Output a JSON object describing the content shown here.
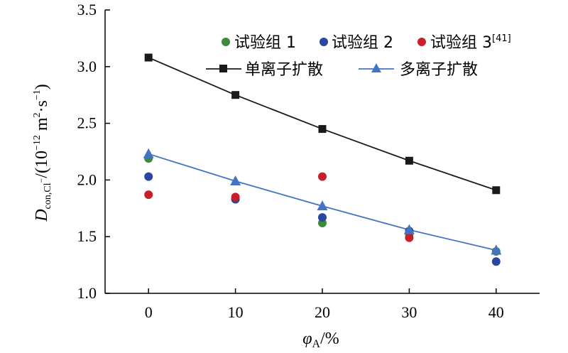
{
  "chart_data": {
    "type": "scatter",
    "x": [
      0,
      10,
      20,
      30,
      40
    ],
    "xlim": [
      -5,
      45
    ],
    "ylim": [
      1.0,
      3.5
    ],
    "xticks": [
      "0",
      "10",
      "20",
      "30",
      "40"
    ],
    "yticks": [
      "1.0",
      "1.5",
      "2.0",
      "2.5",
      "3.0",
      "3.5"
    ],
    "xlabel": "φA/%",
    "ylabel": "Dcon,Cl−/(10−12 m2·s−1)",
    "grid": false,
    "legend_position": "top",
    "series": [
      {
        "name": "试验组 1",
        "kind": "scatter",
        "color": "#3d8a3d",
        "values": [
          2.19,
          1.83,
          1.62,
          1.52,
          1.37
        ]
      },
      {
        "name": "试验组 2",
        "kind": "scatter",
        "color": "#2a46a0",
        "values": [
          2.03,
          1.83,
          1.67,
          1.55,
          1.28
        ]
      },
      {
        "name": "试验组 3",
        "kind": "scatter",
        "color": "#c8202a",
        "values": [
          1.87,
          1.85,
          2.03,
          1.49,
          null
        ]
      },
      {
        "name": "单离子扩散",
        "kind": "line",
        "marker": "square",
        "color": "#1a1a1a",
        "values": [
          3.08,
          2.75,
          2.45,
          2.17,
          1.91
        ]
      },
      {
        "name": "多离子扩散",
        "kind": "line",
        "marker": "triangle",
        "color": "#4472c4",
        "values": [
          2.23,
          1.99,
          1.77,
          1.56,
          1.38
        ]
      }
    ],
    "legend": {
      "series3_ref": "[41]"
    },
    "axis_text": {
      "x_main": "φ",
      "x_sub": "A",
      "x_tail": "/%",
      "y_D": "D",
      "y_sub": "con,Cl",
      "y_subsup": "−",
      "y_mid": "/(10",
      "y_exp1": "−12",
      "y_m": " m",
      "y_exp2": "2",
      "y_s": "·s",
      "y_exp3": "−1",
      "y_close": ")"
    }
  }
}
